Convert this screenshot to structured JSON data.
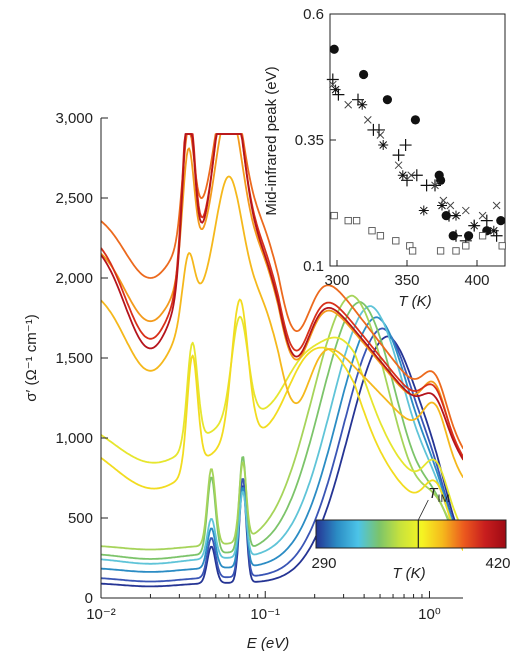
{
  "chart_data": [
    {
      "type": "line",
      "xlabel": "E (eV)",
      "ylabel": "σ′ (Ω⁻¹ cm⁻¹)",
      "xscale": "log",
      "xlim": [
        0.01,
        1.6
      ],
      "ylim": [
        0,
        3000
      ],
      "x_ticks": [
        {
          "value": 0.01,
          "label": "10⁻²"
        },
        {
          "value": 0.1,
          "label": "10⁻¹"
        },
        {
          "value": 1,
          "label": "10⁰"
        }
      ],
      "y_ticks": [
        {
          "value": 0,
          "label": "0"
        },
        {
          "value": 500,
          "label": "500"
        },
        {
          "value": 1000,
          "label": "1,000"
        },
        {
          "value": 1500,
          "label": "1,500"
        },
        {
          "value": 2000,
          "label": "2,000"
        },
        {
          "value": 2500,
          "label": "2,500"
        },
        {
          "value": 3000,
          "label": "3,000"
        }
      ],
      "grid": false,
      "series": [
        {
          "color": "#253494",
          "kind": "insulating",
          "base": 95,
          "dip": 70,
          "p1": 300,
          "p2": 680,
          "mir_e": 0.56,
          "mir_h": 1540,
          "end": 680
        },
        {
          "color": "#3a55b5",
          "kind": "insulating",
          "base": 130,
          "dip": 100,
          "p1": 350,
          "p2": 720,
          "mir_e": 0.52,
          "mir_h": 1555,
          "end": 690
        },
        {
          "color": "#2b8cc4",
          "kind": "insulating",
          "base": 190,
          "dip": 160,
          "p1": 410,
          "p2": 660,
          "mir_e": 0.48,
          "mir_h": 1565,
          "end": 700
        },
        {
          "color": "#5fc4d8",
          "kind": "insulating",
          "base": 250,
          "dip": 210,
          "p1": 460,
          "p2": 620,
          "mir_e": 0.44,
          "mir_h": 1575,
          "end": 700
        },
        {
          "color": "#7cc46a",
          "kind": "insulating",
          "base": 280,
          "dip": 240,
          "p1": 720,
          "p2": 830,
          "mir_e": 0.38,
          "mir_h": 1570,
          "end": 720
        },
        {
          "color": "#a6d45a",
          "kind": "insulating",
          "base": 330,
          "dip": 300,
          "p1": 780,
          "p2": 790,
          "mir_e": 0.34,
          "mir_h": 1560,
          "end": 740
        },
        {
          "color": "#e6e62e",
          "kind": "mixed",
          "base": 1150,
          "dip": 860,
          "p1": 1500,
          "p2": 1500,
          "mir_e": 0.28,
          "mir_h": 1660,
          "end": 760
        },
        {
          "color": "#f2dc20",
          "kind": "mixed",
          "base": 1020,
          "dip": 700,
          "p1": 1410,
          "p2": 1580,
          "mir_e": 0.25,
          "mir_h": 1690,
          "end": 760
        },
        {
          "color": "#f5b81c",
          "kind": "metallic",
          "base": 1940,
          "dip": 1420,
          "p1": 1800,
          "p2": 2120,
          "mir_h": 1690,
          "end": 740
        },
        {
          "color": "#f39a1c",
          "kind": "metallic",
          "base": 2230,
          "dip": 1730,
          "p1": 2470,
          "p2": 2580,
          "mir_h": 1690,
          "end": 730
        },
        {
          "color": "#ec6a1e",
          "kind": "metallic",
          "base": 2420,
          "dip": 2000,
          "p1": 2650,
          "p2": 2850,
          "mir_h": 1700,
          "end": 700
        },
        {
          "color": "#d8301a",
          "kind": "metallic",
          "base": 2290,
          "dip": 1620,
          "p1": 2680,
          "p2": 2620,
          "mir_h": 1700,
          "end": 680
        },
        {
          "color": "#b5141c",
          "kind": "metallic",
          "base": 2250,
          "dip": 1560,
          "p1": 2600,
          "p2": 2650,
          "mir_h": 1710,
          "end": 640
        }
      ],
      "colorbar": {
        "min_label": "290",
        "max_label": "420",
        "label": "T (K)",
        "marker_label": "T",
        "marker_sub": "IM",
        "tmin": 290,
        "tmax": 420,
        "marker_value": 360,
        "colors": [
          "#253494",
          "#2b8cc4",
          "#4cc4e8",
          "#7cc46a",
          "#c8e23c",
          "#f5f523",
          "#f5b81c",
          "#ec5a1e",
          "#c81e1e",
          "#9e0a14"
        ]
      }
    },
    {
      "type": "scatter",
      "xlabel": "T (K)",
      "ylabel": "Mid-infrared peak (eV)",
      "xlim": [
        295,
        420
      ],
      "ylim": [
        0.1,
        0.6
      ],
      "x_ticks": [
        {
          "value": 300,
          "label": "300"
        },
        {
          "value": 350,
          "label": "350"
        },
        {
          "value": 400,
          "label": "400"
        }
      ],
      "y_ticks": [
        {
          "value": 0.1,
          "label": "0.1"
        },
        {
          "value": 0.35,
          "label": "0.35"
        },
        {
          "value": 0.6,
          "label": "0.6"
        }
      ],
      "grid": false,
      "series": [
        {
          "marker": "filled-circle",
          "points": [
            [
              298,
              0.53
            ],
            [
              319,
              0.48
            ],
            [
              336,
              0.43
            ],
            [
              356,
              0.39
            ],
            [
              373,
              0.28
            ],
            [
              374,
              0.27
            ],
            [
              378,
              0.2
            ],
            [
              383,
              0.16
            ],
            [
              394,
              0.16
            ],
            [
              407,
              0.17
            ],
            [
              417,
              0.19
            ]
          ]
        },
        {
          "marker": "plus",
          "points": [
            [
              297,
              0.47
            ],
            [
              301,
              0.44
            ],
            [
              315,
              0.43
            ],
            [
              326,
              0.37
            ],
            [
              330,
              0.37
            ],
            [
              344,
              0.32
            ],
            [
              349,
              0.34
            ],
            [
              350,
              0.27
            ],
            [
              357,
              0.28
            ],
            [
              364,
              0.26
            ],
            [
              370,
              0.26
            ],
            [
              380,
              0.2
            ],
            [
              385,
              0.16
            ],
            [
              392,
              0.15
            ],
            [
              398,
              0.18
            ],
            [
              407,
              0.19
            ],
            [
              414,
              0.16
            ]
          ]
        },
        {
          "marker": "asterisk",
          "points": [
            [
              299,
              0.45
            ],
            [
              318,
              0.42
            ],
            [
              333,
              0.34
            ],
            [
              347,
              0.28
            ],
            [
              362,
              0.21
            ],
            [
              375,
              0.22
            ],
            [
              385,
              0.2
            ],
            [
              398,
              0.18
            ],
            [
              412,
              0.17
            ]
          ]
        },
        {
          "marker": "cross",
          "points": [
            [
              297,
              0.46
            ],
            [
              308,
              0.42
            ],
            [
              322,
              0.39
            ],
            [
              331,
              0.36
            ],
            [
              344,
              0.3
            ],
            [
              353,
              0.28
            ],
            [
              370,
              0.26
            ],
            [
              376,
              0.23
            ],
            [
              381,
              0.22
            ],
            [
              392,
              0.21
            ],
            [
              404,
              0.2
            ],
            [
              414,
              0.22
            ]
          ]
        },
        {
          "marker": "open-square",
          "points": [
            [
              298,
              0.2
            ],
            [
              308,
              0.19
            ],
            [
              314,
              0.19
            ],
            [
              325,
              0.17
            ],
            [
              331,
              0.16
            ],
            [
              342,
              0.15
            ],
            [
              352,
              0.14
            ],
            [
              354,
              0.13
            ],
            [
              374,
              0.13
            ],
            [
              385,
              0.13
            ],
            [
              392,
              0.14
            ],
            [
              404,
              0.16
            ],
            [
              418,
              0.14
            ]
          ]
        }
      ]
    }
  ]
}
